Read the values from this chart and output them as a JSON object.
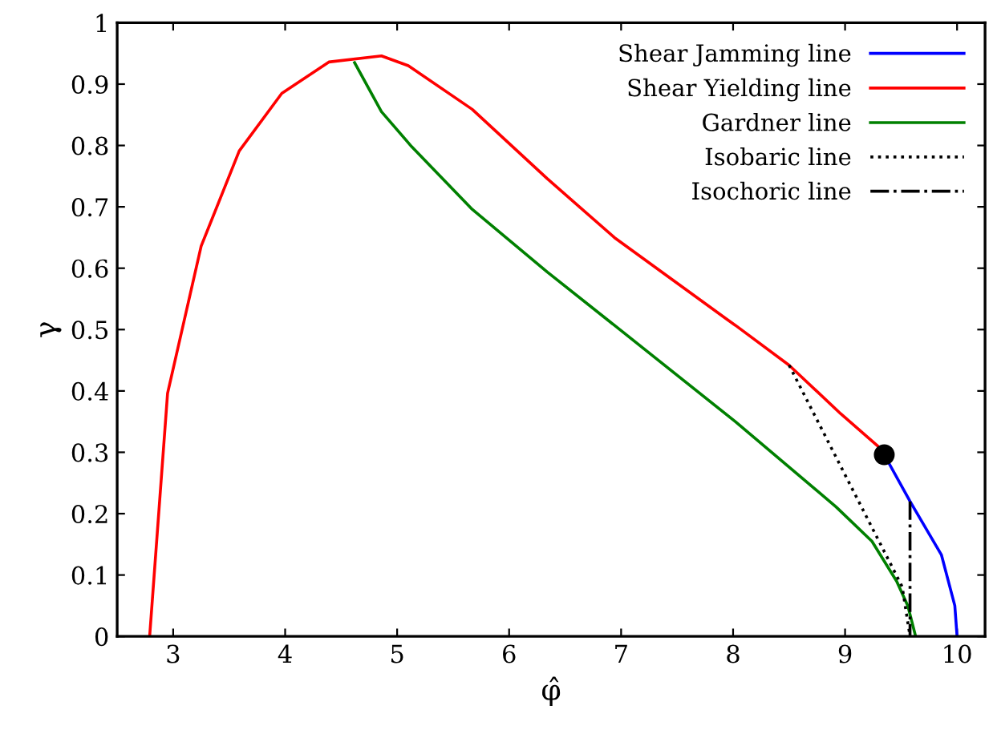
{
  "chart_data": {
    "type": "line",
    "xlabel": "φ̂",
    "ylabel": "γ",
    "xlim": [
      2.5,
      10.25
    ],
    "ylim": [
      0,
      1
    ],
    "xticks": [
      3,
      4,
      5,
      6,
      7,
      8,
      9,
      10
    ],
    "yticks": [
      0,
      0.1,
      0.2,
      0.3,
      0.4,
      0.5,
      0.6,
      0.7,
      0.8,
      0.9,
      1
    ],
    "grid": false,
    "legend": "top right",
    "marker": "none",
    "series": [
      {
        "name": "Shear Jamming line",
        "color": "#0000ff",
        "line_style": "solid",
        "x": [
          9.35,
          9.58,
          9.86,
          9.98,
          10.0
        ],
        "values": [
          0.296,
          0.22,
          0.133,
          0.05,
          0
        ]
      },
      {
        "name": "Shear Yielding line",
        "color": "#ff0000",
        "line_style": "solid",
        "x": [
          2.79,
          2.95,
          3.25,
          3.59,
          3.97,
          4.39,
          4.86,
          5.1,
          5.67,
          6.34,
          6.94,
          7.95,
          8.02,
          8.5,
          8.96,
          9.3,
          9.35
        ],
        "values": [
          0,
          0.396,
          0.636,
          0.791,
          0.885,
          0.936,
          0.946,
          0.93,
          0.859,
          0.746,
          0.65,
          0.516,
          0.507,
          0.442,
          0.363,
          0.309,
          0.296
        ]
      },
      {
        "name": "Gardner line",
        "color": "#008000",
        "line_style": "solid",
        "x": [
          4.62,
          4.86,
          5.13,
          5.67,
          6.34,
          6.94,
          8.02,
          8.92,
          9.24,
          9.46,
          9.56,
          9.63
        ],
        "values": [
          0.935,
          0.855,
          0.798,
          0.696,
          0.594,
          0.507,
          0.35,
          0.211,
          0.155,
          0.09,
          0.05,
          0
        ]
      },
      {
        "name": "Isobaric line",
        "color": "#000000",
        "line_style": "dotted",
        "x": [
          8.5,
          9.51,
          9.58
        ],
        "values": [
          0.442,
          0.081,
          0
        ]
      },
      {
        "name": "Isochoric line",
        "color": "#000000",
        "line_style": "dashdot",
        "x": [
          9.58,
          9.58
        ],
        "values": [
          0.22,
          0
        ]
      },
      {
        "type": "scatter",
        "color": "#000000",
        "marker": "circle",
        "x": [
          9.35
        ],
        "values": [
          0.296
        ]
      }
    ]
  }
}
